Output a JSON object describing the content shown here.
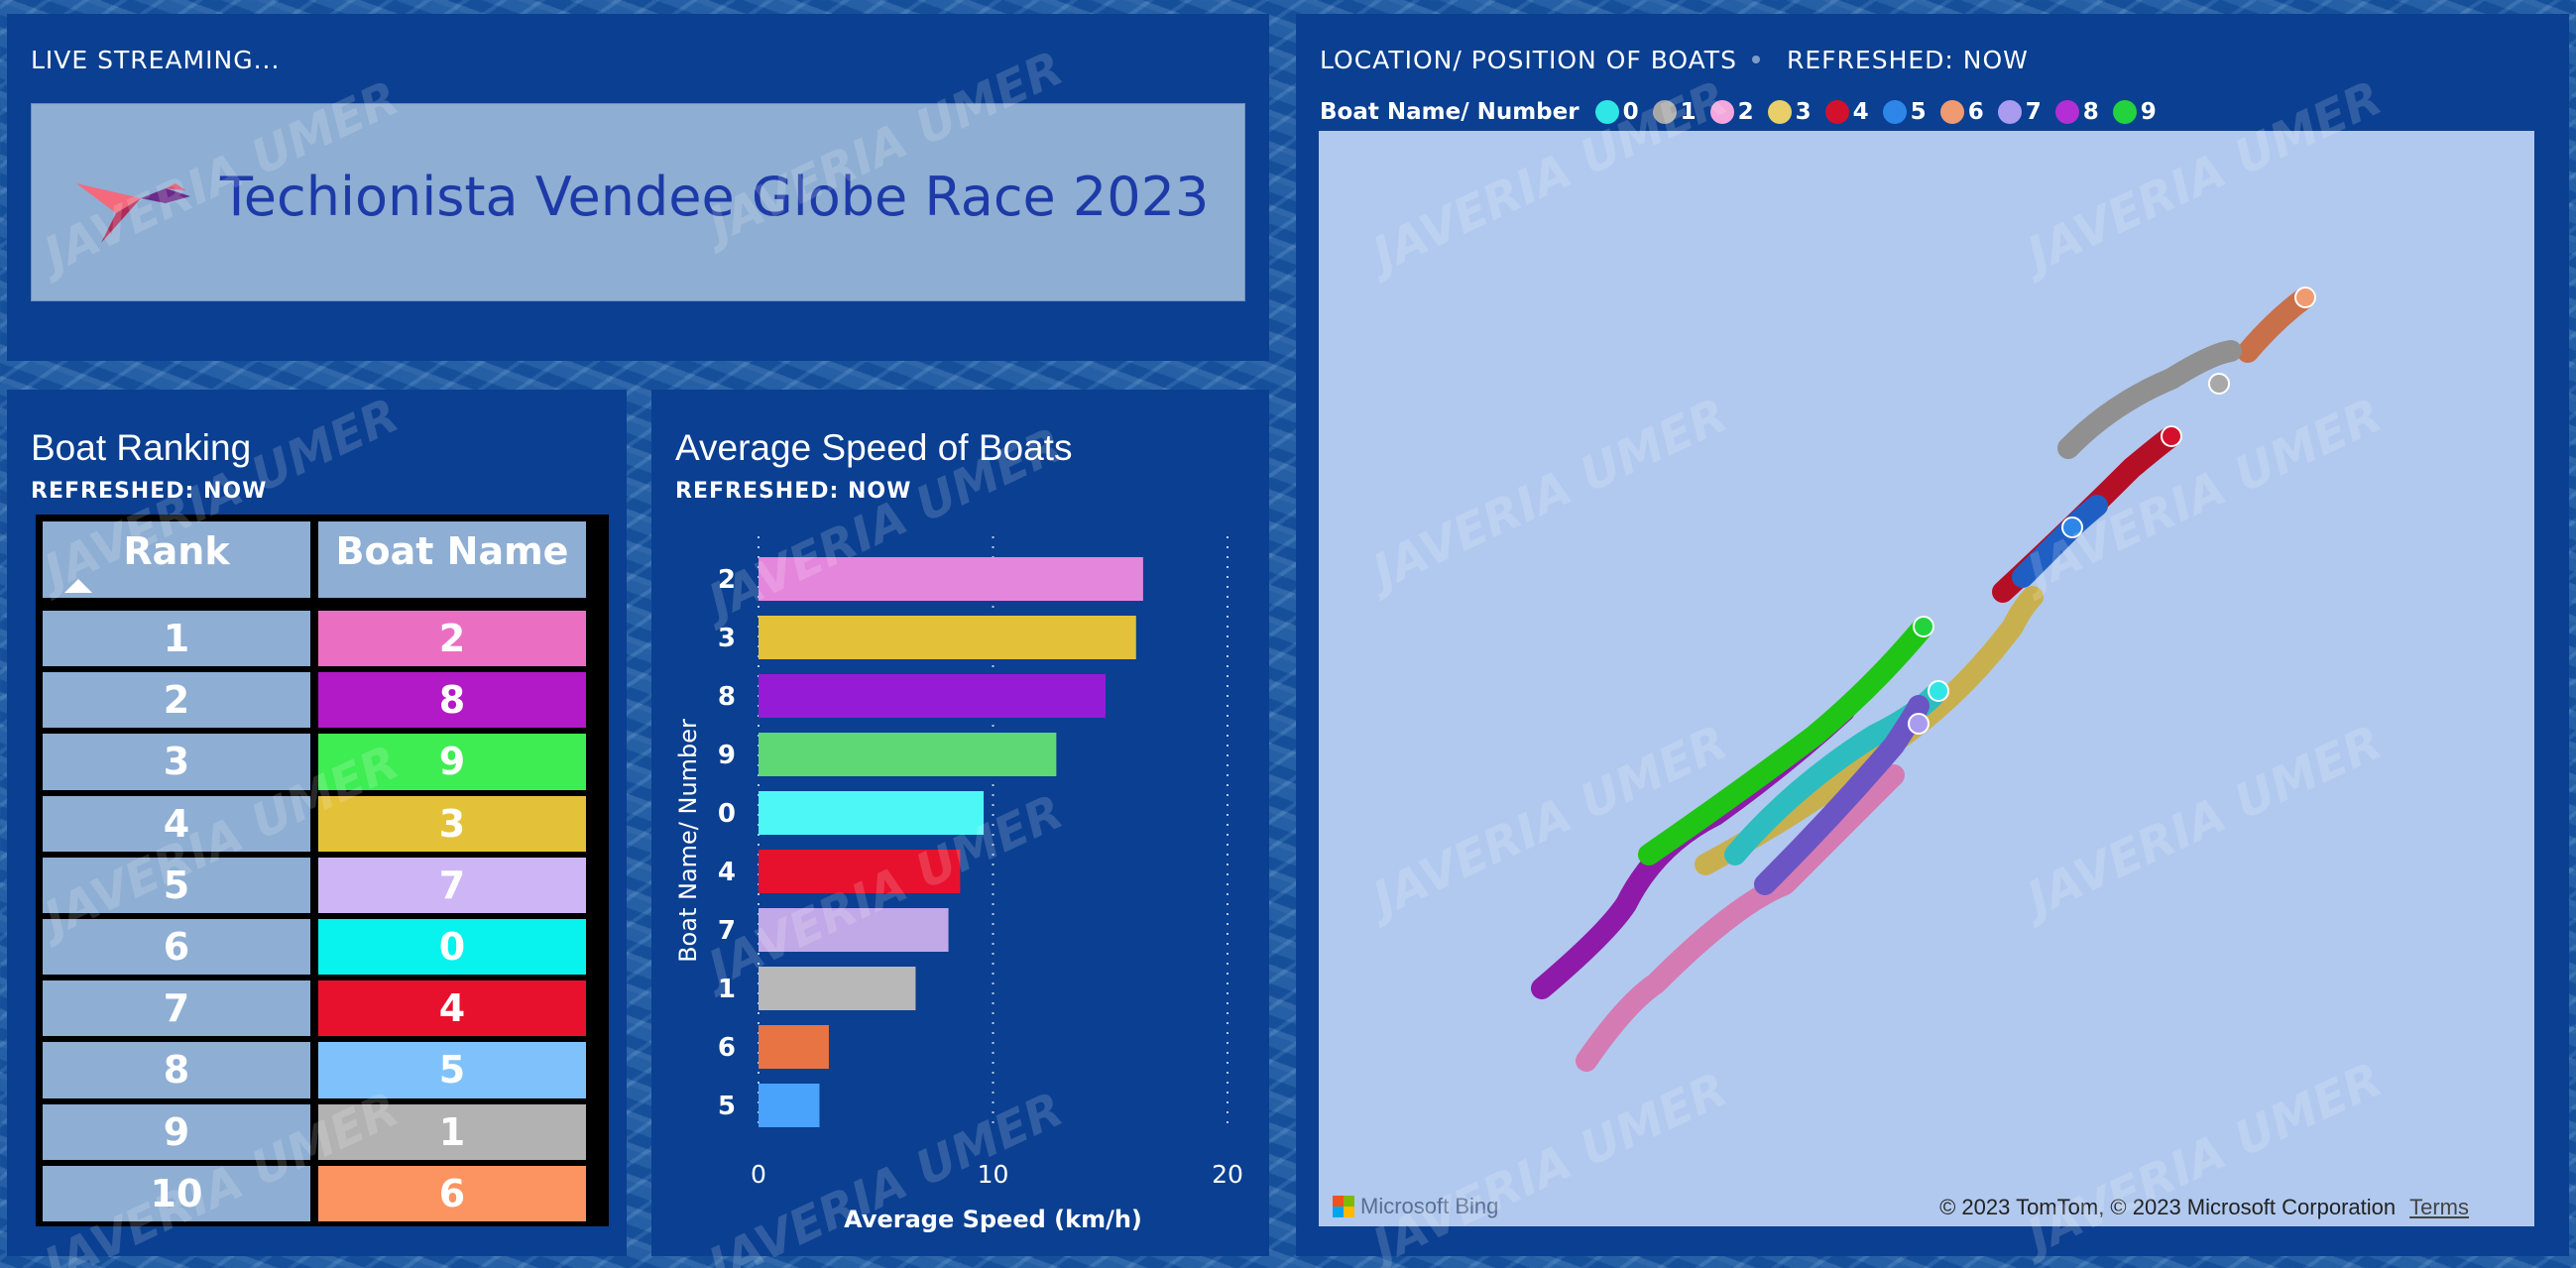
{
  "live": {
    "title": "LIVE STREAMING...",
    "banner_text": "Techionista Vendee Globe Race 2023"
  },
  "ranking": {
    "title": "Boat Ranking",
    "refreshed": "REFRESHED: NOW",
    "col_rank": "Rank",
    "col_boat": "Boat Name",
    "rows": [
      {
        "rank": "1",
        "boat": "2",
        "color": "#ea6fc2"
      },
      {
        "rank": "2",
        "boat": "8",
        "color": "#b11ac6"
      },
      {
        "rank": "3",
        "boat": "9",
        "color": "#3ded52"
      },
      {
        "rank": "4",
        "boat": "3",
        "color": "#e3c23a"
      },
      {
        "rank": "5",
        "boat": "7",
        "color": "#ceb5f6"
      },
      {
        "rank": "6",
        "boat": "0",
        "color": "#08f2ee"
      },
      {
        "rank": "7",
        "boat": "4",
        "color": "#e8112d"
      },
      {
        "rank": "8",
        "boat": "5",
        "color": "#7fc2fb"
      },
      {
        "rank": "9",
        "boat": "1",
        "color": "#b2b2b2"
      },
      {
        "rank": "10",
        "boat": "6",
        "color": "#fb9461"
      }
    ]
  },
  "speed": {
    "title": "Average Speed of Boats",
    "refreshed": "REFRESHED: NOW"
  },
  "chart_data": {
    "type": "bar",
    "orientation": "horizontal",
    "title": "Average Speed of Boats",
    "xlabel": "Average Speed (km/h)",
    "ylabel": "Boat Name/ Number",
    "categories": [
      "2",
      "3",
      "8",
      "9",
      "0",
      "4",
      "7",
      "1",
      "6",
      "5"
    ],
    "values": [
      16.4,
      16.1,
      14.8,
      12.7,
      9.6,
      8.6,
      8.1,
      6.7,
      3.0,
      2.6
    ],
    "colors": [
      "#e486dc",
      "#e3c23a",
      "#951bd6",
      "#5ed874",
      "#4df7f5",
      "#e8112d",
      "#c1a8e6",
      "#b8b8b8",
      "#e77442",
      "#4aa3fb"
    ],
    "xlim": [
      0,
      20
    ],
    "xticks": [
      0,
      10,
      20
    ],
    "grid": "vertical dotted"
  },
  "map": {
    "title": "LOCATION/ POSITION OF BOATS",
    "refreshed": "REFRESHED: NOW",
    "legend_label": "Boat Name/ Number",
    "legend": [
      {
        "name": "0",
        "color": "#2fe6e6"
      },
      {
        "name": "1",
        "color": "#a8a8a8"
      },
      {
        "name": "2",
        "color": "#f4a7dc"
      },
      {
        "name": "3",
        "color": "#e8cf6a"
      },
      {
        "name": "4",
        "color": "#d3112c"
      },
      {
        "name": "5",
        "color": "#2d86e8"
      },
      {
        "name": "6",
        "color": "#f09a72"
      },
      {
        "name": "7",
        "color": "#a99cf0"
      },
      {
        "name": "8",
        "color": "#b32fd4"
      },
      {
        "name": "9",
        "color": "#22d33e"
      }
    ],
    "bing": "Microsoft Bing",
    "copyright": "© 2023 TomTom, © 2023 Microsoft Corporation",
    "terms": "Terms"
  },
  "watermark": "JAVERIA UMER"
}
